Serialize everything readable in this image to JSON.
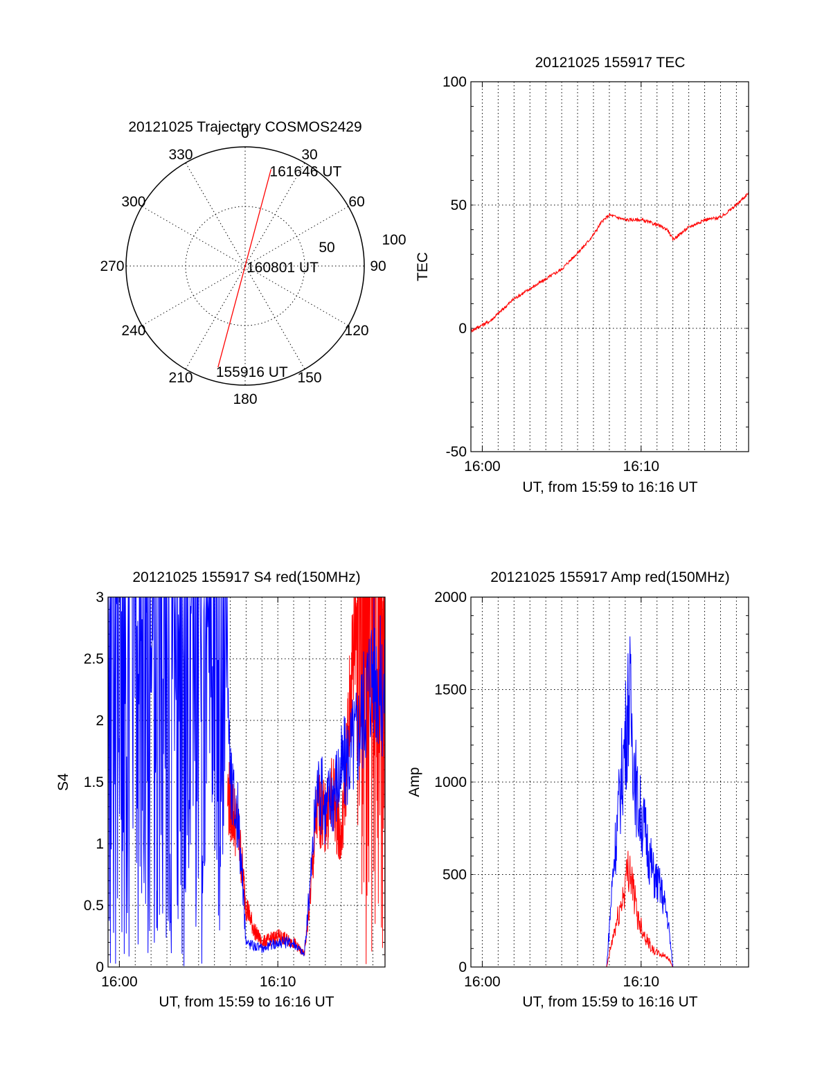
{
  "chart_data": [
    {
      "type": "polar",
      "title": "20121025 Trajectory COSMOS2429",
      "azimuth_labels": [
        "0",
        "30",
        "60",
        "90",
        "120",
        "150",
        "180",
        "210",
        "240",
        "270",
        "300",
        "330"
      ],
      "radial_labels": [
        "50",
        "100"
      ],
      "radial_range": [
        0,
        100
      ],
      "grid": true,
      "series": [
        {
          "color": "#ff0000",
          "points": [
            {
              "azimuth": 195,
              "elevation": 12
            },
            {
              "azimuth": 195,
              "elevation": 50
            },
            {
              "azimuth": 15,
              "elevation": 70
            },
            {
              "azimuth": 15,
              "elevation": 16
            }
          ]
        }
      ],
      "annotations": [
        {
          "text": "161646 UT",
          "azimuth": 15,
          "elevation": 16
        },
        {
          "text": "160801 UT",
          "azimuth": 90,
          "elevation": 90
        },
        {
          "text": "155916 UT",
          "azimuth": 195,
          "elevation": 12
        }
      ]
    },
    {
      "type": "line",
      "title": "20121025 155917 TEC",
      "xlabel": "UT, from 15:59 to 16:16 UT",
      "ylabel": "TEC",
      "xlim": [
        "15:59:17",
        "16:16:46"
      ],
      "ylim": [
        -50,
        100
      ],
      "x_ticks": [
        "16:00",
        "16:10"
      ],
      "y_ticks": [
        "-50",
        "0",
        "50",
        "100"
      ],
      "grid": true,
      "series": [
        {
          "color": "#ff0000",
          "x": [
            "15:59:17",
            "16:00:30",
            "16:02:00",
            "16:03:30",
            "16:05:00",
            "16:06:30",
            "16:07:00",
            "16:07:30",
            "16:08:00",
            "16:09:00",
            "16:10:00",
            "16:11:00",
            "16:11:40",
            "16:12:00",
            "16:13:00",
            "16:14:00",
            "16:15:00",
            "16:16:00",
            "16:16:46"
          ],
          "y": [
            -1,
            3,
            12,
            18,
            24,
            34,
            38,
            43,
            46,
            44,
            44,
            42,
            40,
            36,
            41,
            44,
            45,
            50,
            55
          ]
        }
      ]
    },
    {
      "type": "line",
      "title": "20121025 155917 S4 red(150MHz)",
      "xlabel": "UT, from 15:59 to 16:16 UT",
      "ylabel": "S4",
      "xlim": [
        "15:59:17",
        "16:16:46"
      ],
      "ylim": [
        0,
        3
      ],
      "x_ticks": [
        "16:00",
        "16:10"
      ],
      "y_ticks": [
        "0",
        "0.5",
        "1",
        "1.5",
        "2",
        "2.5",
        "3"
      ],
      "grid": true,
      "series": [
        {
          "color": "#ff0000",
          "x": [
            "16:06:50",
            "16:07:30",
            "16:08:00",
            "16:08:30",
            "16:09:00",
            "16:10:00",
            "16:11:00",
            "16:11:40",
            "16:12:00",
            "16:12:30",
            "16:13:00",
            "16:13:30",
            "16:14:00",
            "16:15:00",
            "16:16:46"
          ],
          "y": [
            1.4,
            1.1,
            0.5,
            0.3,
            0.2,
            0.25,
            0.2,
            0.1,
            0.5,
            1.3,
            1.2,
            1.4,
            1.0,
            3.0,
            3.0
          ]
        },
        {
          "color": "#0000ff",
          "x": [
            "15:59:17",
            "16:06:45",
            "16:07:00",
            "16:07:30",
            "16:08:00",
            "16:09:00",
            "16:10:00",
            "16:11:00",
            "16:11:40",
            "16:12:00",
            "16:12:30",
            "16:13:00",
            "16:14:00",
            "16:15:00",
            "16:16:00",
            "16:16:46"
          ],
          "y": [
            3.0,
            3.0,
            1.5,
            1.2,
            0.2,
            0.15,
            0.2,
            0.2,
            0.1,
            0.6,
            1.5,
            1.3,
            1.6,
            1.9,
            2.5,
            2.2
          ]
        }
      ]
    },
    {
      "type": "line",
      "title": "20121025 155917 Amp red(150MHz)",
      "xlabel": "UT, from 15:59 to 16:16 UT",
      "ylabel": "Amp",
      "xlim": [
        "15:59:17",
        "16:16:46"
      ],
      "ylim": [
        0,
        2000
      ],
      "x_ticks": [
        "16:00",
        "16:10"
      ],
      "y_ticks": [
        "0",
        "500",
        "1000",
        "1500",
        "2000"
      ],
      "grid": true,
      "series": [
        {
          "color": "#0000ff",
          "x": [
            "15:59:17",
            "16:07:50",
            "16:08:15",
            "16:08:45",
            "16:09:00",
            "16:09:15",
            "16:09:45",
            "16:10:15",
            "16:10:45",
            "16:11:15",
            "16:11:40",
            "16:12:00",
            "16:16:46"
          ],
          "y": [
            0,
            0,
            480,
            900,
            1100,
            1330,
            800,
            650,
            450,
            370,
            240,
            0,
            0
          ]
        },
        {
          "color": "#ff0000",
          "x": [
            "15:59:17",
            "16:07:50",
            "16:08:15",
            "16:08:45",
            "16:09:15",
            "16:09:45",
            "16:10:15",
            "16:10:45",
            "16:11:15",
            "16:11:40",
            "16:12:00",
            "16:16:46"
          ],
          "y": [
            0,
            0,
            150,
            300,
            500,
            250,
            150,
            80,
            60,
            50,
            0,
            0
          ]
        }
      ]
    }
  ]
}
